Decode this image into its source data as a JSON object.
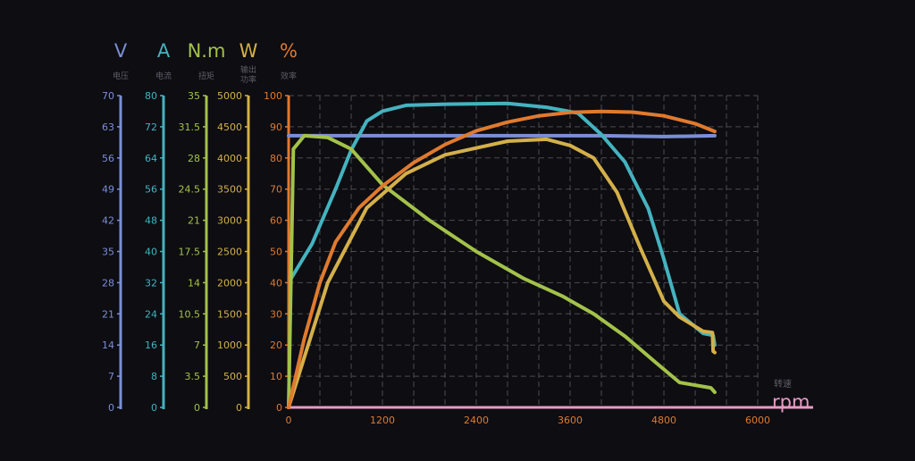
{
  "chart_data": {
    "type": "line",
    "x_axis": {
      "unit": "rpm",
      "label": "转速",
      "min": 0,
      "max": 6000,
      "ticks": [
        0,
        1200,
        2400,
        3600,
        4800,
        6000
      ]
    },
    "y_axes": [
      {
        "id": "V",
        "unit": "V",
        "label": "电压",
        "color": "#7b8fd4",
        "ticks": [
          "0",
          "7",
          "14",
          "21",
          "28",
          "35",
          "42",
          "49",
          "56",
          "63",
          "70"
        ]
      },
      {
        "id": "A",
        "unit": "A",
        "label": "电流",
        "color": "#44b3bf",
        "ticks": [
          "0",
          "8",
          "16",
          "24",
          "32",
          "40",
          "48",
          "56",
          "64",
          "72",
          "80"
        ]
      },
      {
        "id": "Nm",
        "unit": "N.m",
        "label": "扭矩",
        "color": "#a3c24a",
        "ticks": [
          "0",
          "3.5",
          "7",
          "10.5",
          "14",
          "17.5",
          "21",
          "24.5",
          "28",
          "31.5",
          "35"
        ]
      },
      {
        "id": "W",
        "unit": "W",
        "label": "输出功率",
        "label_lines": [
          "输出",
          "功率"
        ],
        "color": "#d4b04a",
        "ticks": [
          "0",
          "500",
          "1000",
          "1500",
          "2000",
          "2500",
          "3000",
          "3500",
          "4000",
          "4500",
          "5000"
        ]
      },
      {
        "id": "pct",
        "unit": "%",
        "label": "效率",
        "color": "#e07a2e",
        "ticks": [
          "0",
          "10",
          "20",
          "30",
          "40",
          "50",
          "60",
          "70",
          "80",
          "90",
          "100"
        ]
      }
    ],
    "grid": true,
    "series": [
      {
        "name": "电压",
        "axis": "V",
        "color": "#7b8fd4",
        "points": [
          [
            0,
            61
          ],
          [
            200,
            61
          ],
          [
            1000,
            61
          ],
          [
            2000,
            61
          ],
          [
            3000,
            61
          ],
          [
            4000,
            61
          ],
          [
            4800,
            60.8
          ],
          [
            5450,
            61
          ]
        ]
      },
      {
        "name": "电流",
        "axis": "A",
        "color": "#44b3bf",
        "points": [
          [
            30,
            33
          ],
          [
            300,
            42
          ],
          [
            600,
            56
          ],
          [
            800,
            66
          ],
          [
            1000,
            73.5
          ],
          [
            1200,
            76
          ],
          [
            1500,
            77.5
          ],
          [
            2000,
            77.8
          ],
          [
            2800,
            78
          ],
          [
            3300,
            77
          ],
          [
            3700,
            75.5
          ],
          [
            4000,
            70
          ],
          [
            4300,
            63
          ],
          [
            4600,
            51
          ],
          [
            4800,
            38
          ],
          [
            5000,
            24
          ],
          [
            5300,
            19
          ],
          [
            5430,
            18.5
          ],
          [
            5450,
            16
          ]
        ]
      },
      {
        "name": "扭矩",
        "axis": "Nm",
        "color": "#a3c24a",
        "points": [
          [
            0,
            0
          ],
          [
            60,
            29
          ],
          [
            200,
            30.5
          ],
          [
            500,
            30.3
          ],
          [
            800,
            29
          ],
          [
            1200,
            25
          ],
          [
            1800,
            21
          ],
          [
            2400,
            17.5
          ],
          [
            3000,
            14.5
          ],
          [
            3500,
            12.5
          ],
          [
            3900,
            10.5
          ],
          [
            4300,
            8
          ],
          [
            4700,
            5
          ],
          [
            5000,
            2.8
          ],
          [
            5400,
            2.2
          ],
          [
            5450,
            1.7
          ]
        ]
      },
      {
        "name": "输出功率",
        "axis": "W",
        "color": "#d4b04a",
        "points": [
          [
            0,
            0
          ],
          [
            500,
            2000
          ],
          [
            1000,
            3200
          ],
          [
            1500,
            3750
          ],
          [
            2000,
            4050
          ],
          [
            2800,
            4270
          ],
          [
            3300,
            4300
          ],
          [
            3600,
            4200
          ],
          [
            3900,
            4000
          ],
          [
            4200,
            3450
          ],
          [
            4500,
            2550
          ],
          [
            4800,
            1700
          ],
          [
            5000,
            1450
          ],
          [
            5300,
            1220
          ],
          [
            5420,
            1200
          ],
          [
            5430,
            900
          ],
          [
            5450,
            880
          ]
        ]
      },
      {
        "name": "效率",
        "axis": "pct",
        "color": "#e07a2e",
        "points": [
          [
            0,
            0
          ],
          [
            200,
            22
          ],
          [
            400,
            40
          ],
          [
            600,
            53
          ],
          [
            900,
            64
          ],
          [
            1200,
            71
          ],
          [
            1600,
            78.5
          ],
          [
            2000,
            84.3
          ],
          [
            2400,
            88.7
          ],
          [
            2800,
            91.5
          ],
          [
            3200,
            93.5
          ],
          [
            3600,
            94.6
          ],
          [
            4000,
            94.9
          ],
          [
            4400,
            94.7
          ],
          [
            4800,
            93.5
          ],
          [
            5200,
            91
          ],
          [
            5450,
            88.5
          ]
        ]
      }
    ]
  }
}
